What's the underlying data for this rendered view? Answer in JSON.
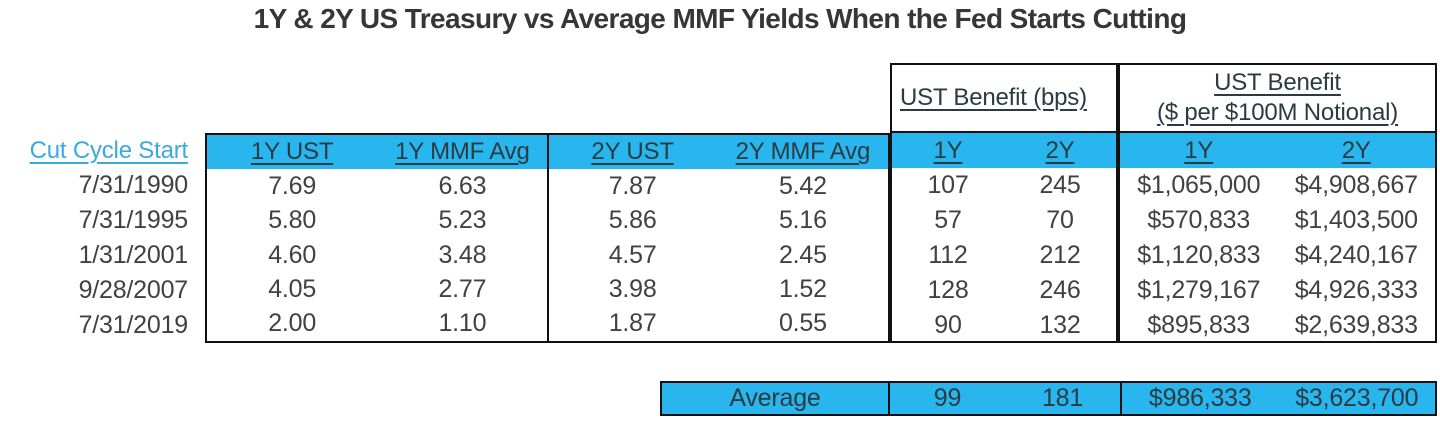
{
  "title": "1Y & 2Y US Treasury vs Average MMF Yields When the Fed Starts Cutting",
  "colors": {
    "accent_cyan": "#29B6EF",
    "row_label_blue": "#39A9E0",
    "header_text": "#2B3B42",
    "body_text": "#414141",
    "border": "#111111"
  },
  "chart_data": {
    "type": "table",
    "title": "1Y & 2Y US Treasury vs Average MMF Yields When the Fed Starts Cutting",
    "row_header": "Cut Cycle Start",
    "group_headers": {
      "bps": "UST Benefit (bps)",
      "usd_line1": "UST Benefit",
      "usd_line2": "($ per $100M Notional)"
    },
    "yield_columns": [
      "1Y UST",
      "1Y MMF Avg",
      "2Y UST",
      "2Y MMF Avg"
    ],
    "bps_columns": [
      "1Y",
      "2Y"
    ],
    "usd_columns": [
      "1Y",
      "2Y"
    ],
    "rows": [
      {
        "date": "7/31/1990",
        "values": [
          "7.69",
          "6.63",
          "7.87",
          "5.42"
        ],
        "bps": [
          "107",
          "245"
        ],
        "usd": [
          "$1,065,000",
          "$4,908,667"
        ]
      },
      {
        "date": "7/31/1995",
        "values": [
          "5.80",
          "5.23",
          "5.86",
          "5.16"
        ],
        "bps": [
          "57",
          "70"
        ],
        "usd": [
          "$570,833",
          "$1,403,500"
        ]
      },
      {
        "date": "1/31/2001",
        "values": [
          "4.60",
          "3.48",
          "4.57",
          "2.45"
        ],
        "bps": [
          "112",
          "212"
        ],
        "usd": [
          "$1,120,833",
          "$4,240,167"
        ]
      },
      {
        "date": "9/28/2007",
        "values": [
          "4.05",
          "2.77",
          "3.98",
          "1.52"
        ],
        "bps": [
          "128",
          "246"
        ],
        "usd": [
          "$1,279,167",
          "$4,926,333"
        ]
      },
      {
        "date": "7/31/2019",
        "values": [
          "2.00",
          "1.10",
          "1.87",
          "0.55"
        ],
        "bps": [
          "90",
          "132"
        ],
        "usd": [
          "$895,833",
          "$2,639,833"
        ]
      }
    ],
    "average": {
      "label": "Average",
      "bps": [
        "99",
        "181"
      ],
      "usd": [
        "$986,333",
        "$3,623,700"
      ]
    }
  }
}
